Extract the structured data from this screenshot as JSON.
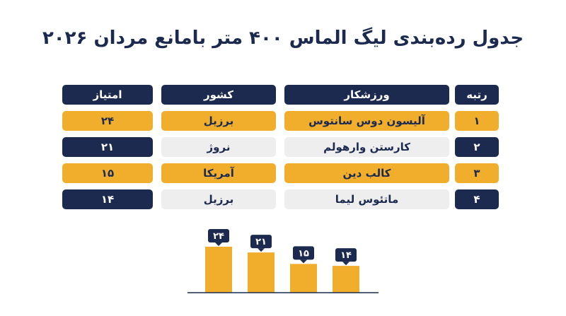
{
  "title": "جدول رده‌بندی لیگ الماس ۴۰۰ متر بامانع مردان ۲۰۲۶",
  "table": {
    "headers": {
      "rank": "رتبه",
      "athlete": "ورزشکار",
      "country": "کشور",
      "points": "امتیاز"
    },
    "rows": [
      {
        "rank": "۱",
        "athlete": "آلیسون دوس سانتوس",
        "country": "برزیل",
        "points": "۲۴",
        "style": "gold"
      },
      {
        "rank": "۲",
        "athlete": "کارستن وارهولم",
        "country": "نروژ",
        "points": "۲۱",
        "style": "plain"
      },
      {
        "rank": "۳",
        "athlete": "کالب دین",
        "country": "آمریکا",
        "points": "۱۵",
        "style": "gold"
      },
      {
        "rank": "۴",
        "athlete": "ماتئوس لیما",
        "country": "برزیل",
        "points": "۱۴",
        "style": "plain"
      }
    ]
  },
  "colors": {
    "navy": "#1c2a4f",
    "gold": "#f1ae2c",
    "grey": "#eeeeee"
  },
  "chart_data": {
    "type": "bar",
    "categories": [
      "آلیسون دوس سانتوس",
      "کارستن وارهولم",
      "کالب دین",
      "ماتئوس لیما"
    ],
    "values": [
      24,
      21,
      15,
      14
    ],
    "value_labels": [
      "۲۴",
      "۲۱",
      "۱۵",
      "۱۴"
    ],
    "ylim": [
      0,
      24
    ],
    "grid": false
  }
}
